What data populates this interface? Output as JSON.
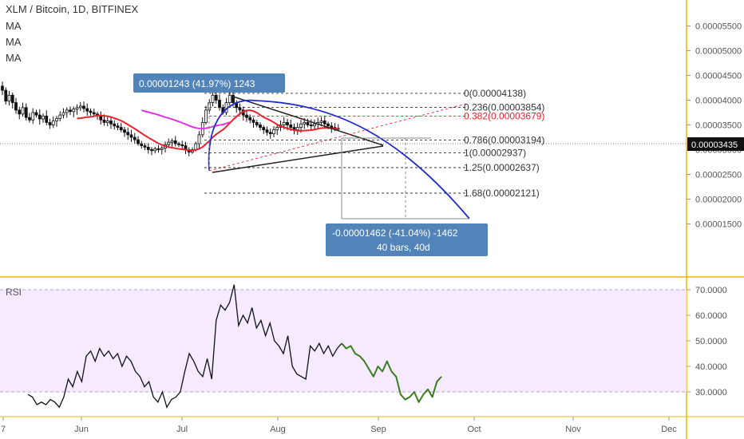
{
  "header": {
    "title": "XLM / Bitcoin, 1D, BITFINEX",
    "ma_labels": [
      "MA",
      "MA",
      "MA"
    ]
  },
  "chart_data": [
    {
      "type": "candlestick",
      "title": "XLM / Bitcoin, 1D, BITFINEX",
      "ylim": [
        1.3e-05,
        6e-05
      ],
      "yticks": [
        "0.00001500",
        "0.00002000",
        "0.00002500",
        "0.00003000",
        "0.00003500",
        "0.00004000",
        "0.00004500",
        "0.00005000",
        "0.00005500"
      ],
      "xticks": [
        "7",
        "Jun",
        "Jul",
        "Aug",
        "Sep",
        "Oct",
        "Nov",
        "Dec"
      ],
      "last_price": "0.00003435",
      "close_series": [
        4.2e-05,
        3.98e-05,
        4.1e-05,
        3.95e-05,
        3.8e-05,
        3.72e-05,
        3.85e-05,
        3.65e-05,
        3.6e-05,
        3.75e-05,
        3.7e-05,
        3.62e-05,
        3.68e-05,
        3.55e-05,
        3.5e-05,
        3.58e-05,
        3.63e-05,
        3.7e-05,
        3.75e-05,
        3.8e-05,
        3.77e-05,
        3.82e-05,
        3.85e-05,
        3.88e-05,
        3.83e-05,
        3.78e-05,
        3.75e-05,
        3.72e-05,
        3.68e-05,
        3.6e-05,
        3.55e-05,
        3.58e-05,
        3.52e-05,
        3.48e-05,
        3.45e-05,
        3.4e-05,
        3.35e-05,
        3.3e-05,
        3.25e-05,
        3.2e-05,
        3.12e-05,
        3.08e-05,
        3.05e-05,
        3e-05,
        2.98e-05,
        3.02e-05,
        3e-05,
        3.03e-05,
        3.1e-05,
        3.15e-05,
        3.18e-05,
        3.12e-05,
        3.1e-05,
        3.08e-05,
        3e-05,
        2.95e-05,
        3e-05,
        3.12e-05,
        3.3e-05,
        3.55e-05,
        3.8e-05,
        3.95e-05,
        4.1e-05,
        4e-05,
        3.85e-05,
        3.75e-05,
        3.95e-05,
        4.1e-05,
        3.95e-05,
        3.85e-05,
        3.8e-05,
        3.7e-05,
        3.65e-05,
        3.6e-05,
        3.55e-05,
        3.5e-05,
        3.45e-05,
        3.4e-05,
        3.35e-05,
        3.32e-05,
        3.4e-05,
        3.45e-05,
        3.5e-05,
        3.55e-05,
        3.5e-05,
        3.45e-05,
        3.4e-05,
        3.45e-05,
        3.52e-05,
        3.55e-05,
        3.5e-05,
        3.48e-05,
        3.52e-05,
        3.55e-05,
        3.58e-05,
        3.52e-05,
        3.48e-05,
        3.45e-05,
        3.43e-05,
        3.43e-05
      ],
      "moving_averages": [
        {
          "name": "MA",
          "color": "#e8222b"
        },
        {
          "name": "MA",
          "color": "#e630e6"
        },
        {
          "name": "MA",
          "color": "#1f2bd1"
        }
      ],
      "annotations": {
        "measure_up": "0.00001243 (41.97%) 1243",
        "measure_down": "-0.00001462 (-41.04%) -1462",
        "measure_down_bars": "40 bars, 40d"
      },
      "fibonacci": [
        {
          "label": "0(0.00004138)",
          "price": 4.138e-05,
          "color": "#333333"
        },
        {
          "label": "0.236(0.00003854)",
          "price": 3.854e-05,
          "color": "#333333"
        },
        {
          "label": "0.382(0.00003679)",
          "price": 3.679e-05,
          "color": "#e8222b"
        },
        {
          "label": "0.786(0.00003194)",
          "price": 3.194e-05,
          "color": "#333333"
        },
        {
          "label": "1(0.00002937)",
          "price": 2.937e-05,
          "color": "#333333"
        },
        {
          "label": "1.25(0.00002637)",
          "price": 2.637e-05,
          "color": "#333333"
        },
        {
          "label": "1.68(0.00002121)",
          "price": 2.121e-05,
          "color": "#333333"
        }
      ]
    },
    {
      "type": "line",
      "title": "RSI",
      "ylim": [
        21,
        72
      ],
      "yticks": [
        "30.0000",
        "40.0000",
        "50.0000",
        "60.0000",
        "70.0000"
      ],
      "band": [
        30,
        70
      ],
      "rsi_black": [
        29,
        28,
        25,
        26,
        25,
        27,
        26,
        24,
        28,
        35,
        32,
        38,
        34,
        44,
        46,
        42,
        47,
        44,
        46,
        43,
        45,
        40,
        44,
        42,
        38,
        36,
        32,
        34,
        28,
        26,
        30,
        24,
        27,
        28,
        30,
        38,
        45,
        42,
        38,
        36,
        43,
        35,
        58,
        64,
        62,
        65,
        72,
        56,
        60,
        57,
        63,
        55,
        58,
        52,
        57,
        50,
        48,
        45,
        52,
        40,
        37,
        36,
        35,
        48,
        46,
        49,
        45,
        48,
        44,
        47,
        49
      ],
      "rsi_green": [
        49,
        47,
        48,
        45,
        44,
        42,
        39,
        36,
        40,
        38,
        42,
        38,
        36,
        29,
        27,
        28,
        30,
        26,
        29,
        31,
        28,
        34,
        36
      ]
    }
  ]
}
